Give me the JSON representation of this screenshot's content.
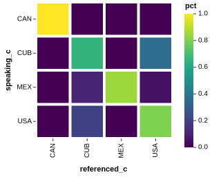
{
  "chart_data": {
    "type": "heatmap",
    "x_title": "referenced_c",
    "y_title": "speaking_c",
    "legend_title": "pct",
    "x": [
      "CAN",
      "CUB",
      "MEX",
      "USA"
    ],
    "y": [
      "CAN",
      "CUB",
      "MEX",
      "USA"
    ],
    "values": [
      [
        1.0,
        0.0,
        0.0,
        0.0
      ],
      [
        0.0,
        0.65,
        0.0,
        0.35
      ],
      [
        0.0,
        0.1,
        0.85,
        0.05
      ],
      [
        0.0,
        0.2,
        0.0,
        0.8
      ]
    ],
    "zlim": [
      0,
      1
    ],
    "zticks": [
      {
        "value": 0,
        "label": "0.0"
      },
      {
        "value": 0.2,
        "label": "0.2"
      },
      {
        "value": 0.4,
        "label": "0.4"
      },
      {
        "value": 0.6,
        "label": "0.6"
      },
      {
        "value": 0.8,
        "label": "0.8"
      },
      {
        "value": 1,
        "label": "1.0"
      }
    ],
    "colorscale": [
      "#440154",
      "#482878",
      "#3e4989",
      "#31688e",
      "#26828e",
      "#1f9e89",
      "#35b779",
      "#6ece58",
      "#b5de2b",
      "#fde725"
    ]
  }
}
